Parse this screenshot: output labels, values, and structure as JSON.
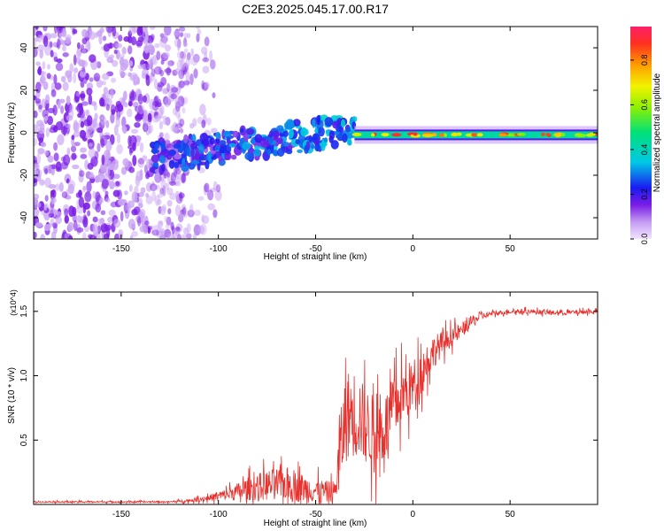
{
  "title": "C2E3.2025.045.17.00.R17",
  "colors": {
    "snr_line": "#e8302c",
    "dense_band": "#6a0ad8",
    "sparse_noise": "#b58cf0",
    "background": "#ffffff"
  },
  "chart_data": [
    {
      "type": "heatmap",
      "title": "C2E3.2025.045.17.00.R17",
      "xlabel": "Height of straight line (km)",
      "ylabel": "Frequency (Hz)",
      "xlim": [
        -195,
        95
      ],
      "ylim": [
        -50,
        50
      ],
      "x_ticks": [
        -150,
        -100,
        -50,
        0,
        50
      ],
      "x_tick_labels": [
        "-150",
        "-100",
        "-50",
        "0",
        "50"
      ],
      "y_ticks": [
        -40,
        -20,
        0,
        20,
        40
      ],
      "y_tick_labels": [
        "-40",
        "-20",
        "0",
        "20",
        "40"
      ],
      "colorbar": {
        "label": "Normalized spectral amplitude",
        "range": [
          0,
          0.95
        ],
        "ticks": [
          0,
          0.2,
          0.4,
          0.6,
          0.8
        ],
        "tick_labels": [
          "0.0",
          "0.2",
          "0.4",
          "0.6",
          "0.8"
        ],
        "colormap": "rainbow (violet to red)"
      },
      "features": [
        {
          "name": "broadband noise",
          "x_range": [
            -195,
            -115
          ],
          "y_range": [
            -50,
            50
          ],
          "amplitude": 0.05
        },
        {
          "name": "emerging signal",
          "x_range": [
            -135,
            -30
          ],
          "center_freq_hz": [
            -12,
            2
          ],
          "amplitude": 0.2
        },
        {
          "name": "steady signal",
          "x_range": [
            -30,
            95
          ],
          "center_freq_hz": -1,
          "amplitude": 0.45
        }
      ]
    },
    {
      "type": "line",
      "xlabel": "Height of straight line (km)",
      "ylabel": "SNR (10 * v/v)",
      "y_multiplier": "(x10^4)",
      "xlim": [
        -195,
        95
      ],
      "ylim": [
        0,
        1.65
      ],
      "x_ticks": [
        -150,
        -100,
        -50,
        0,
        50
      ],
      "x_tick_labels": [
        "-150",
        "-100",
        "-50",
        "0",
        "50"
      ],
      "y_ticks": [
        0.5,
        1.0,
        1.5
      ],
      "y_tick_labels": [
        "0.5",
        "1.0",
        "1.5"
      ],
      "series": [
        {
          "name": "SNR",
          "color": "#e8302c",
          "x": [
            -195,
            -180,
            -160,
            -140,
            -125,
            -115,
            -105,
            -95,
            -85,
            -75,
            -65,
            -55,
            -45,
            -40,
            -38,
            -35,
            -32,
            -28,
            -25,
            -20,
            -15,
            -10,
            -5,
            0,
            5,
            10,
            15,
            20,
            25,
            30,
            35,
            40,
            50,
            60,
            70,
            80,
            95
          ],
          "values": [
            0.02,
            0.02,
            0.02,
            0.02,
            0.02,
            0.03,
            0.05,
            0.08,
            0.12,
            0.15,
            0.16,
            0.12,
            0.1,
            0.1,
            0.35,
            0.65,
            0.72,
            0.7,
            0.62,
            0.55,
            0.58,
            0.75,
            0.85,
            0.92,
            1.05,
            1.18,
            1.25,
            1.3,
            1.35,
            1.42,
            1.46,
            1.48,
            1.5,
            1.5,
            1.49,
            1.49,
            1.5
          ],
          "noise": [
            0.01,
            0.01,
            0.01,
            0.01,
            0.01,
            0.02,
            0.04,
            0.08,
            0.15,
            0.2,
            0.22,
            0.18,
            0.14,
            0.14,
            0.45,
            0.55,
            0.6,
            0.55,
            0.5,
            0.5,
            0.45,
            0.4,
            0.38,
            0.35,
            0.28,
            0.22,
            0.16,
            0.12,
            0.1,
            0.07,
            0.05,
            0.03,
            0.03,
            0.03,
            0.03,
            0.03,
            0.03
          ]
        }
      ]
    }
  ]
}
